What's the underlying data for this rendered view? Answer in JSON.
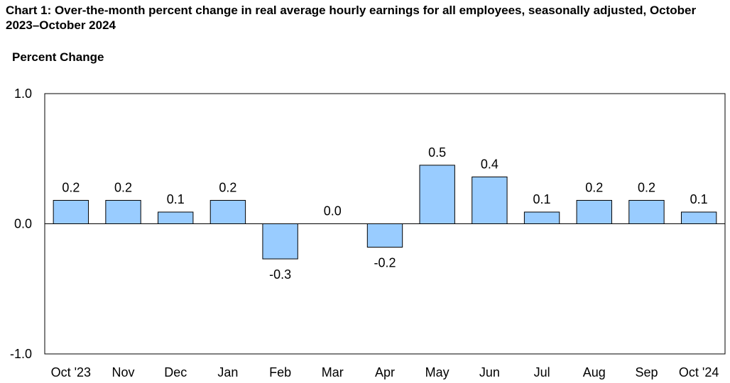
{
  "title": "Chart 1: Over-the-month percent change in real average hourly earnings for all employees, seasonally adjusted, October 2023–October 2024",
  "ylabel": "Percent Change",
  "chart_data": {
    "type": "bar",
    "title": "Chart 1: Over-the-month percent change in real average hourly earnings for all employees, seasonally adjusted, October 2023–October 2024",
    "xlabel": "",
    "ylabel": "Percent Change",
    "categories": [
      "Oct '23",
      "Nov",
      "Dec",
      "Jan",
      "Feb",
      "Mar",
      "Apr",
      "May",
      "Jun",
      "Jul",
      "Aug",
      "Sep",
      "Oct '24"
    ],
    "values": [
      0.18,
      0.18,
      0.09,
      0.18,
      -0.27,
      0.0,
      -0.18,
      0.45,
      0.36,
      0.09,
      0.18,
      0.18,
      0.09
    ],
    "data_labels": [
      "0.2",
      "0.2",
      "0.1",
      "0.2",
      "-0.3",
      "0.0",
      "-0.2",
      "0.5",
      "0.4",
      "0.1",
      "0.2",
      "0.2",
      "0.1"
    ],
    "yticks": [
      "1.0",
      "0.0",
      "-1.0"
    ],
    "ylim": [
      -1.0,
      1.0
    ],
    "grid": false,
    "bar_color": "#99ccff",
    "bar_edge_color": "#000000"
  }
}
